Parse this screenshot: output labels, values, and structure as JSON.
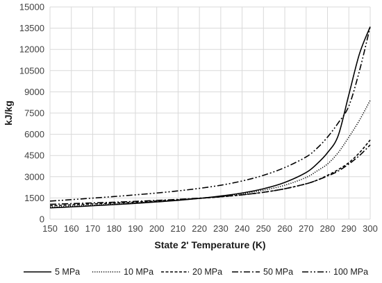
{
  "chart_data": {
    "type": "line",
    "title": "",
    "xlabel": "State 2' Temperature (K)",
    "ylabel": "kJ/kg",
    "xlim": [
      150,
      300
    ],
    "ylim": [
      0,
      15000
    ],
    "xticks": [
      150,
      160,
      170,
      180,
      190,
      200,
      210,
      220,
      230,
      240,
      250,
      260,
      270,
      280,
      290,
      300
    ],
    "yticks": [
      0,
      1500,
      3000,
      4500,
      6000,
      7500,
      9000,
      10500,
      12000,
      13500,
      15000
    ],
    "grid": "both",
    "legend_position": "bottom",
    "x": [
      150,
      160,
      170,
      180,
      190,
      200,
      210,
      220,
      230,
      240,
      250,
      260,
      270,
      275,
      280,
      285,
      290,
      295,
      300
    ],
    "series": [
      {
        "name": "5 MPa",
        "dash": "solid",
        "values": [
          800,
          870,
          950,
          1030,
          1120,
          1220,
          1330,
          1470,
          1640,
          1850,
          2150,
          2600,
          3300,
          3900,
          4700,
          5900,
          8800,
          11700,
          13600
        ]
      },
      {
        "name": "10 MPa",
        "dash": "dot",
        "values": [
          850,
          920,
          990,
          1070,
          1150,
          1250,
          1350,
          1470,
          1610,
          1800,
          2050,
          2400,
          2950,
          3400,
          3900,
          4700,
          5800,
          7000,
          8400
        ]
      },
      {
        "name": "20 MPa",
        "dash": "dash",
        "values": [
          950,
          1010,
          1080,
          1140,
          1210,
          1290,
          1370,
          1470,
          1580,
          1720,
          1900,
          2150,
          2500,
          2750,
          3100,
          3500,
          4000,
          4700,
          5600
        ]
      },
      {
        "name": "50 MPa",
        "dash": "dashdot",
        "values": [
          1050,
          1100,
          1150,
          1200,
          1260,
          1330,
          1400,
          1490,
          1590,
          1720,
          1900,
          2150,
          2500,
          2750,
          3050,
          3400,
          3900,
          4500,
          5250
        ]
      },
      {
        "name": "100 MPa",
        "dash": "dashdotdot",
        "values": [
          1280,
          1380,
          1490,
          1600,
          1720,
          1850,
          2000,
          2180,
          2400,
          2700,
          3100,
          3650,
          4400,
          5000,
          5800,
          6800,
          8000,
          10500,
          13600
        ]
      }
    ]
  }
}
